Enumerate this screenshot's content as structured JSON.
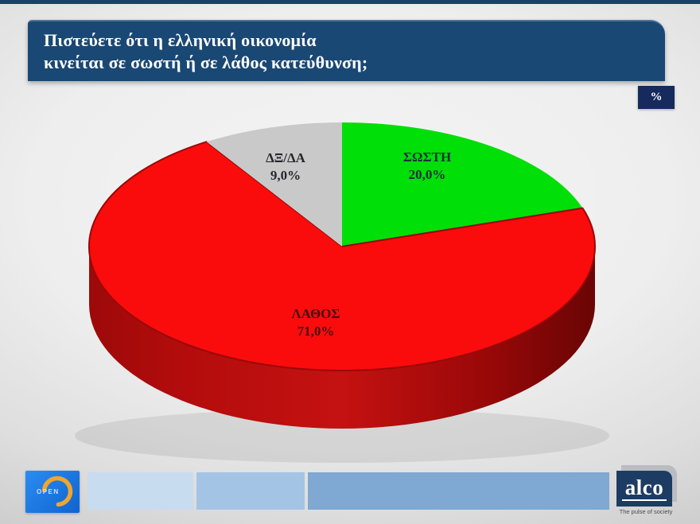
{
  "header": {
    "top_strip_color": "#1d4068",
    "box_color": "#1a4874",
    "title_line1": "Πιστεύετε ότι η ελληνική οικονομία",
    "title_line2": "κινείται σε σωστή ή σε λάθος κατεύθυνση;",
    "unit_badge": "%",
    "unit_badge_color": "#162a5e"
  },
  "chart_data": {
    "type": "pie",
    "style": "3d",
    "title": "Πιστεύετε ότι η ελληνική οικονομία κινείται σε σωστή ή σε λάθος κατεύθυνση;",
    "unit": "%",
    "start_angle_deg": 90,
    "direction": "clockwise",
    "legend": "none",
    "labels_inside": true,
    "slices": [
      {
        "label": "ΣΩΣΤΗ",
        "value": 20.0,
        "display_value": "20,0%",
        "color": "#00df07",
        "label_color": "#1e2e3e"
      },
      {
        "label": "ΛΑΘΟΣ",
        "value": 71.0,
        "display_value": "71,0%",
        "color": "#fa0c0c",
        "label_color": "#43100e",
        "edge_stroke": "#9a0808",
        "side_color": "#b00c0c"
      },
      {
        "label": "ΔΞ/ΔΑ",
        "value": 9.0,
        "display_value": "9,0%",
        "color": "#c9c9c9",
        "label_color": "#26262c"
      }
    ]
  },
  "footer": {
    "open_logo": {
      "text": "OPEN",
      "box_color_top": "#2b8cf0",
      "box_color_bottom": "#0f64d0",
      "arc_color": "#f0a62c",
      "text_color": "#cfe0f8"
    },
    "bars": [
      {
        "color": "#c8dcf0"
      },
      {
        "color": "#a4c4e6"
      },
      {
        "color": "#7fa8d2"
      }
    ],
    "alco": {
      "name": "alco",
      "tagline": "The pulse of society",
      "box_color": "#1c3c63"
    }
  }
}
